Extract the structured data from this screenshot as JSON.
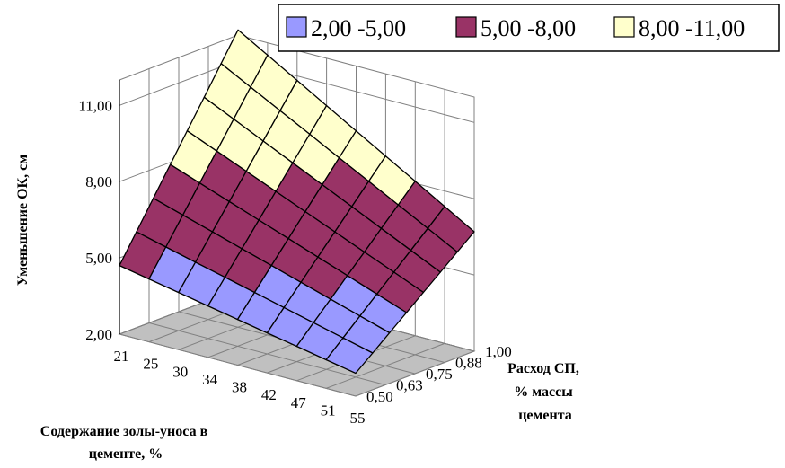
{
  "chart_data": {
    "type": "surface",
    "x_label_lines": [
      "Содержание золы-уноса в",
      "цементе, %"
    ],
    "y_label_lines": [
      "Расход СП,",
      "% массы",
      "цемента"
    ],
    "z_label": "Уменьшение ОК, см",
    "x_ticks": [
      "21",
      "25",
      "30",
      "34",
      "38",
      "42",
      "47",
      "51",
      "55"
    ],
    "y_ticks": [
      "0,50",
      "0,63",
      "0,75",
      "0,88",
      "1,00"
    ],
    "z_ticks": [
      "2,00",
      "5,00",
      "8,00",
      "11,00"
    ],
    "z_range": [
      2,
      12
    ],
    "bands": [
      {
        "label": "2,00 -5,00",
        "from": 2,
        "to": 5,
        "color": "#9999FF"
      },
      {
        "label": "5,00 -8,00",
        "from": 5,
        "to": 8,
        "color": "#993366"
      },
      {
        "label": "8,00 -11,00",
        "from": 8,
        "to": 11,
        "color": "#FFFFCC"
      }
    ],
    "z_corners_est": {
      "x21_y0.50": 4.7,
      "x55_y0.50": 2.9,
      "x21_y1.00": 12.2,
      "x55_y1.00": 6.7
    }
  }
}
